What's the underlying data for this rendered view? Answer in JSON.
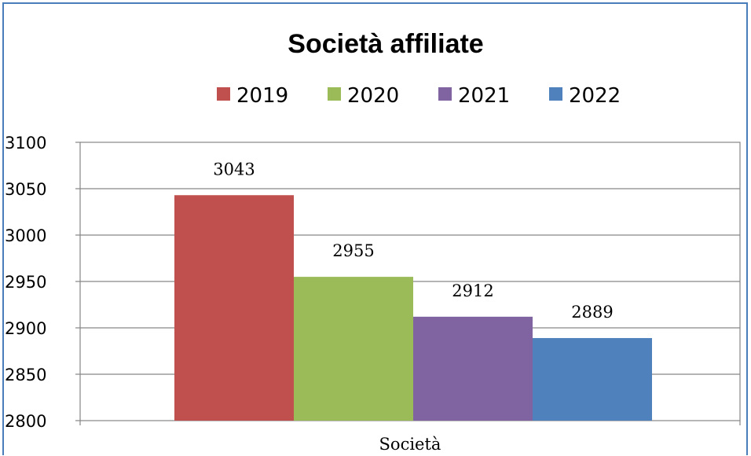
{
  "chart_data": {
    "type": "bar",
    "title": "Società affiliate",
    "categories": [
      "Società"
    ],
    "series": [
      {
        "name": "2019",
        "values": [
          3043
        ],
        "color": "#c0504d"
      },
      {
        "name": "2020",
        "values": [
          2955
        ],
        "color": "#9bbb59"
      },
      {
        "name": "2021",
        "values": [
          2912
        ],
        "color": "#8064a2"
      },
      {
        "name": "2022",
        "values": [
          2889
        ],
        "color": "#4f81bd"
      }
    ],
    "ylim": [
      2800,
      3100
    ],
    "yticks": [
      2800,
      2850,
      2900,
      2950,
      3000,
      3050,
      3100
    ],
    "grid": true,
    "legend": "top"
  }
}
